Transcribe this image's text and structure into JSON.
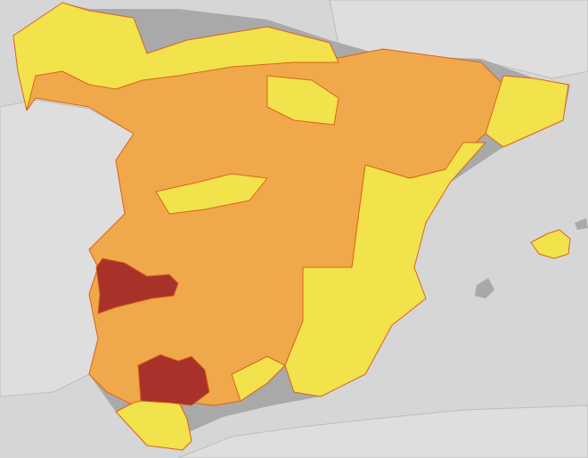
{
  "map": {
    "colors": {
      "sea": "#d6d6d6",
      "neighbour_land": "#dedede",
      "relief": "#a9a9a9",
      "level_yellow": "#f2e24b",
      "level_orange": "#f0a94a",
      "level_red": "#a8322a",
      "border": "#d9641c"
    },
    "warning_levels": [
      "yellow",
      "orange",
      "red"
    ]
  }
}
